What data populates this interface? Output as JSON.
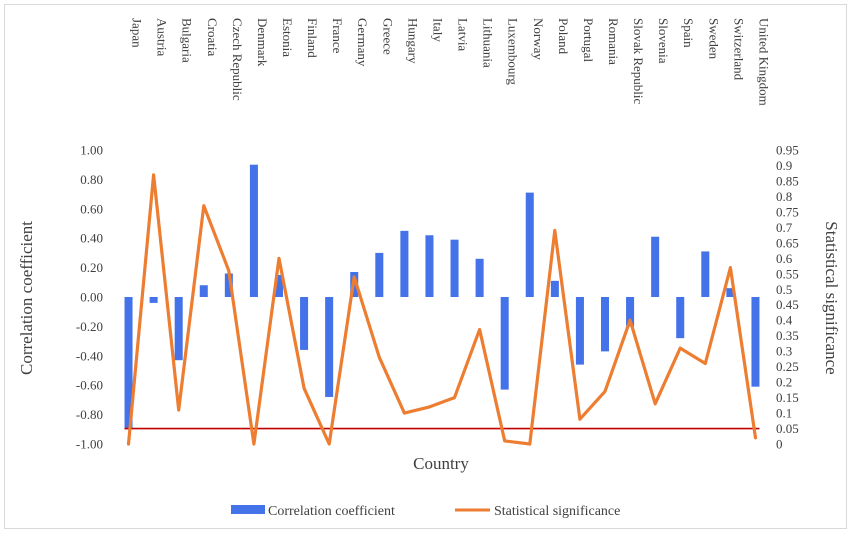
{
  "chart_data": {
    "type": "bar+line",
    "xlabel": "Country",
    "ylabel_left": "Correlation coefficient",
    "ylabel_right": "Statistical significance",
    "ylim_left": [
      -1.0,
      1.0
    ],
    "ylim_right": [
      0,
      0.95
    ],
    "left_ticks": [
      "1.00",
      "0.80",
      "0.60",
      "0.40",
      "0.20",
      "0.00",
      "-0.20",
      "-0.40",
      "-0.60",
      "-0.80",
      "-1.00"
    ],
    "right_ticks": [
      "0.95",
      "0.9",
      "0.85",
      "0.8",
      "0.75",
      "0.7",
      "0.65",
      "0.6",
      "0.55",
      "0.5",
      "0.45",
      "0.4",
      "0.35",
      "0.3",
      "0.25",
      "0.2",
      "0.15",
      "0.1",
      "0.05",
      "0"
    ],
    "categories": [
      "Japan",
      "Austria",
      "Bulgaria",
      "Croatia",
      "Czech Republic",
      "Denmark",
      "Estonia",
      "Finland",
      "France",
      "Germany",
      "Greece",
      "Hungary",
      "Italy",
      "Latvia",
      "Lithuania",
      "Luxembourg",
      "Norway",
      "Poland",
      "Portugal",
      "Romania",
      "Slovak Republic",
      "Slovenia",
      "Spain",
      "Sweden",
      "Switzerland",
      "United Kingdom"
    ],
    "series": [
      {
        "name": "Correlation coefficient",
        "type": "bar",
        "axis": "left",
        "color": "#4472e8",
        "values": [
          -0.9,
          -0.04,
          -0.43,
          0.08,
          0.16,
          0.9,
          0.15,
          -0.36,
          -0.68,
          0.17,
          0.3,
          0.45,
          0.42,
          0.39,
          0.26,
          -0.63,
          0.71,
          0.11,
          -0.46,
          -0.37,
          -0.2,
          0.41,
          -0.28,
          0.31,
          0.06,
          -0.61
        ]
      },
      {
        "name": "Statistical significance",
        "type": "line",
        "axis": "right",
        "color": "#ed7d31",
        "values": [
          0.0,
          0.87,
          0.11,
          0.77,
          0.56,
          0.0,
          0.6,
          0.18,
          0.0,
          0.54,
          0.28,
          0.1,
          0.12,
          0.15,
          0.37,
          0.01,
          0.0,
          0.69,
          0.08,
          0.17,
          0.4,
          0.13,
          0.31,
          0.26,
          0.57,
          0.02
        ]
      }
    ],
    "reference_line": {
      "axis": "right",
      "value": 0.05,
      "color": "#c00000"
    },
    "legend": {
      "position": "bottom"
    }
  }
}
